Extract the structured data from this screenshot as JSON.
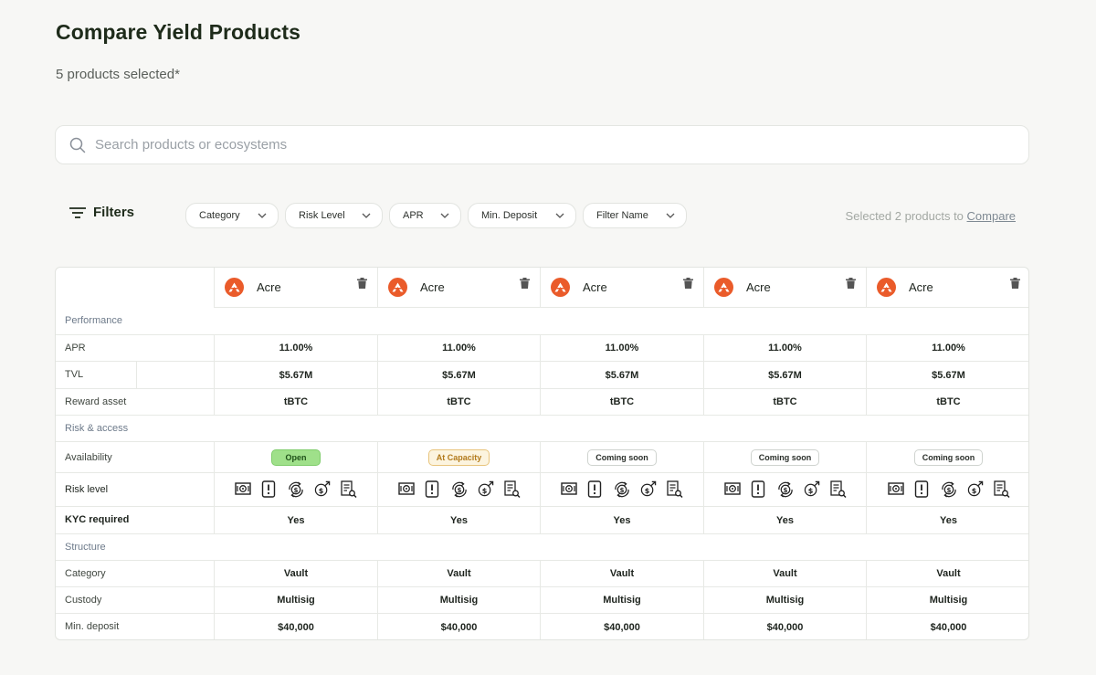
{
  "page": {
    "title": "Compare Yield Products",
    "subtitle": "5 products selected*"
  },
  "search": {
    "placeholder": "Search products or ecosystems",
    "icon": "search-icon"
  },
  "filters": {
    "label": "Filters",
    "chips": [
      "Category",
      "Risk Level",
      "APR",
      "Min. Deposit",
      "Filter Name"
    ],
    "selected_text": "Selected 2 products to",
    "compare_link": "Compare"
  },
  "table": {
    "products": [
      {
        "name": "Acre"
      },
      {
        "name": "Acre"
      },
      {
        "name": "Acre"
      },
      {
        "name": "Acre"
      },
      {
        "name": "Acre"
      }
    ],
    "sections": {
      "performance": "Performance",
      "risk_access": "Risk & access",
      "structure": "Structure"
    },
    "rows": {
      "apr": {
        "label": "APR",
        "values": [
          "11.00%",
          "11.00%",
          "11.00%",
          "11.00%",
          "11.00%"
        ]
      },
      "tvl": {
        "label": "TVL",
        "values": [
          "$5.67M",
          "$5.67M",
          "$5.67M",
          "$5.67M",
          "$5.67M"
        ]
      },
      "reward": {
        "label": "Reward asset",
        "values": [
          "tBTC",
          "tBTC",
          "tBTC",
          "tBTC",
          "tBTC"
        ]
      },
      "availability": {
        "label": "Availability",
        "values": [
          "Open",
          "At Capacity",
          "Coming soon",
          "Coming soon",
          "Coming soon"
        ]
      },
      "risk_level": {
        "label": "Risk level",
        "icons": [
          "vault-icon",
          "alert-document-icon",
          "coin-cycle-icon",
          "coin-growth-icon",
          "audit-report-icon"
        ]
      },
      "kyc": {
        "label": "KYC required",
        "values": [
          "Yes",
          "Yes",
          "Yes",
          "Yes",
          "Yes"
        ]
      },
      "category": {
        "label": "Category",
        "values": [
          "Vault",
          "Vault",
          "Vault",
          "Vault",
          "Vault"
        ]
      },
      "custody": {
        "label": "Custody",
        "values": [
          "Multisig",
          "Multisig",
          "Multisig",
          "Multisig",
          "Multisig"
        ]
      },
      "min_deposit": {
        "label": "Min. deposit",
        "values": [
          "$40,000",
          "$40,000",
          "$40,000",
          "$40,000",
          "$40,000"
        ]
      }
    }
  },
  "colors": {
    "brand_logo": "#ea5b2a",
    "open_badge": "#9fe08a",
    "capacity_badge": "#fcf4df",
    "background": "#f7f7f5"
  }
}
